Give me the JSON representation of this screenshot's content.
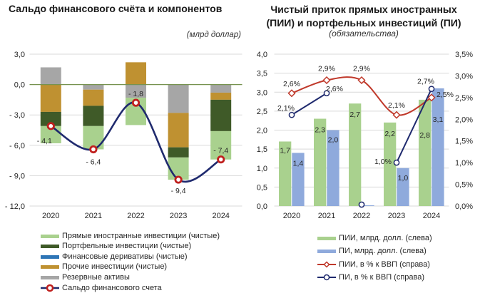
{
  "chart_data": [
    {
      "type": "bar",
      "subtype": "stacked-bar-with-line",
      "title": "Сальдо финансового счёта и компонентов",
      "unit_note": "(млрд доллар)",
      "xlabel": "",
      "ylabel": "",
      "categories": [
        "2020",
        "2021",
        "2022",
        "2023",
        "2024"
      ],
      "ylim": [
        -12,
        3
      ],
      "ytick_values": [
        3,
        0,
        -3,
        -6,
        -9,
        -12
      ],
      "yticks": [
        "3,0",
        "0,0",
        "- 3,0",
        "- 6,0",
        "- 9,0",
        "- 12,0"
      ],
      "grid": true,
      "legend_position": "bottom",
      "series": [
        {
          "name": "Прямые иностранные инвестиции (чистые)",
          "type": "bar",
          "color": "#a9d18e",
          "values": [
            -1.7,
            -2.3,
            -2.7,
            -2.2,
            -2.8
          ]
        },
        {
          "name": "Портфельные инвестиции (чистые)",
          "type": "bar",
          "color": "#3f5a28",
          "values": [
            -1.4,
            -2.0,
            0.0,
            -1.0,
            -3.1
          ]
        },
        {
          "name": "Финансовые деривативы (чистые)",
          "type": "bar",
          "color": "#2e75b6",
          "values": [
            0.0,
            0.0,
            0.0,
            0.0,
            0.0
          ]
        },
        {
          "name": "Прочие инвестиции (чистые)",
          "type": "bar",
          "color": "#bf9131",
          "values": [
            -2.7,
            -1.6,
            2.2,
            -3.4,
            -0.7
          ]
        },
        {
          "name": "Резервные активы",
          "type": "bar",
          "color": "#a6a6a6",
          "values": [
            1.7,
            -0.5,
            -1.3,
            -2.8,
            -0.8
          ]
        },
        {
          "name": "Сальдо финансового счета",
          "type": "line",
          "color": "#1f2a6e",
          "marker_color": "#c0201e",
          "values": [
            -4.1,
            -6.4,
            -1.8,
            -9.4,
            -7.4
          ],
          "labels": [
            "- 4,1",
            "- 6,4",
            "- 1,8",
            "- 9,4",
            "- 7,4"
          ]
        }
      ],
      "zero_line_color": "#76924f"
    },
    {
      "type": "bar",
      "subtype": "grouped-bar-with-lines-dual-axis",
      "title_lines": [
        "Чистый приток прямых иностранных",
        "(ПИИ) и портфельных инвестиций (ПИ)"
      ],
      "subtitle": "(обязательства)",
      "xlabel": "",
      "ylabel": "",
      "categories": [
        "2020",
        "2021",
        "2022",
        "2023",
        "2024"
      ],
      "ylim": [
        0,
        4
      ],
      "ytick_values": [
        0,
        0.5,
        1,
        1.5,
        2,
        2.5,
        3,
        3.5,
        4
      ],
      "yticks": [
        "0,0",
        "0,5",
        "1,0",
        "1,5",
        "2,0",
        "2,5",
        "3,0",
        "3,5",
        "4,0"
      ],
      "y2lim": [
        0,
        3.5
      ],
      "y2tick_values": [
        0,
        0.5,
        1,
        1.5,
        2,
        2.5,
        3,
        3.5
      ],
      "y2ticks": [
        "0,0%",
        "0,5%",
        "1,0%",
        "1,5%",
        "2,0%",
        "2,5%",
        "3,0%",
        "3,5%"
      ],
      "grid": true,
      "legend_position": "bottom",
      "series": [
        {
          "name": "ПИИ, млрд. долл. (слева)",
          "type": "bar",
          "axis": "left",
          "color": "#a9d18e",
          "values": [
            1.7,
            2.3,
            2.7,
            2.2,
            2.8
          ],
          "labels": [
            "1,7",
            "2,3",
            "2,7",
            "2,2",
            "2,8"
          ]
        },
        {
          "name": "ПИ, млрд. долл. (слева)",
          "type": "bar",
          "axis": "left",
          "color": "#8faadc",
          "values": [
            1.4,
            2.0,
            0.0,
            1.0,
            3.1
          ],
          "labels": [
            "1,4",
            "2,0",
            "",
            "1,0",
            "3,1"
          ]
        },
        {
          "name": "ПИИ, в % к ВВП (справа)",
          "type": "line",
          "axis": "right",
          "color": "#c0392b",
          "marker": "diamond",
          "values": [
            2.6,
            2.9,
            2.9,
            2.1,
            2.5
          ],
          "labels": [
            "2,6%",
            "2,9%",
            "2,9%",
            "2,1%",
            "2,5%"
          ]
        },
        {
          "name": "ПИ, в % к ВВП (справа)",
          "type": "line",
          "axis": "right",
          "color": "#1f2a6e",
          "marker": "circle",
          "values": [
            2.1,
            2.6,
            0.0,
            1.0,
            2.7
          ],
          "labels": [
            "2,1%",
            "2,6%",
            "",
            "1,0%",
            "2,7%"
          ],
          "unconnected_points": [
            2
          ]
        }
      ]
    }
  ]
}
